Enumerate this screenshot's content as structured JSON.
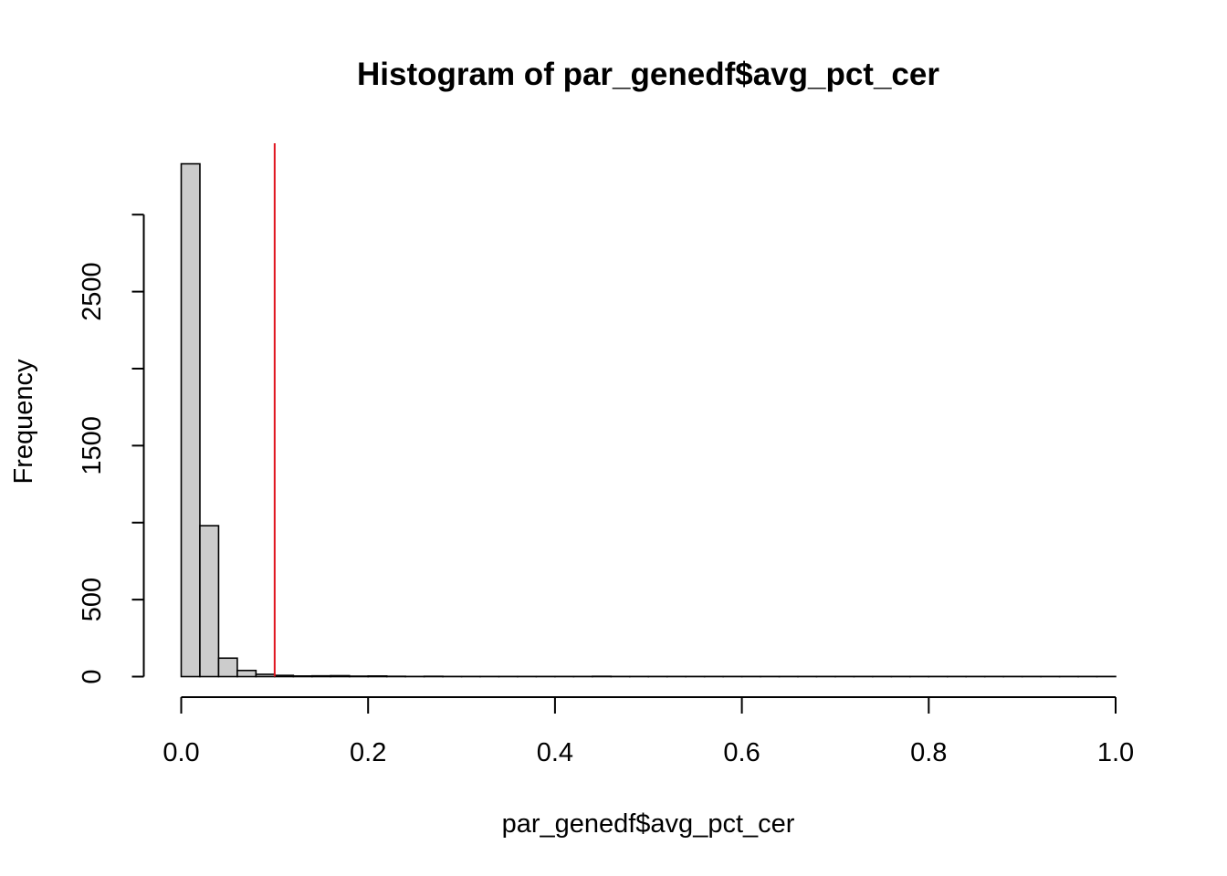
{
  "chart_data": {
    "type": "bar",
    "title": "Histogram of par_genedf$avg_pct_cer",
    "xlabel": "par_genedf$avg_pct_cer",
    "ylabel": "Frequency",
    "xlim": [
      0,
      1
    ],
    "ylim": [
      0,
      3400
    ],
    "x_ticks": [
      0,
      0.2,
      0.4,
      0.6,
      0.8,
      1
    ],
    "x_tick_labels": [
      "0.0",
      "0.2",
      "0.4",
      "0.6",
      "0.8",
      "1.0"
    ],
    "y_ticks": [
      0,
      500,
      1000,
      1500,
      2000,
      2500,
      3000
    ],
    "y_tick_labels": [
      "0",
      "500",
      "",
      "1500",
      "",
      "2500",
      ""
    ],
    "bin_width": 0.02,
    "bin_starts": [
      0,
      0.02,
      0.04,
      0.06,
      0.08,
      0.1,
      0.12,
      0.14,
      0.16,
      0.18,
      0.2,
      0.22,
      0.24,
      0.26,
      0.28,
      0.3,
      0.32,
      0.34,
      0.36,
      0.38,
      0.4,
      0.42,
      0.44,
      0.46,
      0.48,
      0.5,
      0.52,
      0.54,
      0.56,
      0.58,
      0.6,
      0.62,
      0.64,
      0.66,
      0.68,
      0.7,
      0.72,
      0.74,
      0.76,
      0.78,
      0.8,
      0.82,
      0.84,
      0.86,
      0.88,
      0.9,
      0.92,
      0.94,
      0.96,
      0.98
    ],
    "values": [
      3330,
      980,
      120,
      40,
      15,
      8,
      4,
      5,
      6,
      3,
      4,
      2,
      1,
      2,
      1,
      1,
      1,
      1,
      1,
      1,
      1,
      1,
      2,
      1,
      1,
      1,
      1,
      1,
      1,
      1,
      1,
      1,
      1,
      1,
      1,
      1,
      1,
      1,
      1,
      1,
      1,
      1,
      1,
      1,
      1,
      1,
      1,
      1,
      1,
      1
    ],
    "bar_fill": "#cccccc",
    "reference_line": {
      "x": 0.1,
      "color": "#e0141e"
    },
    "grid": false
  }
}
